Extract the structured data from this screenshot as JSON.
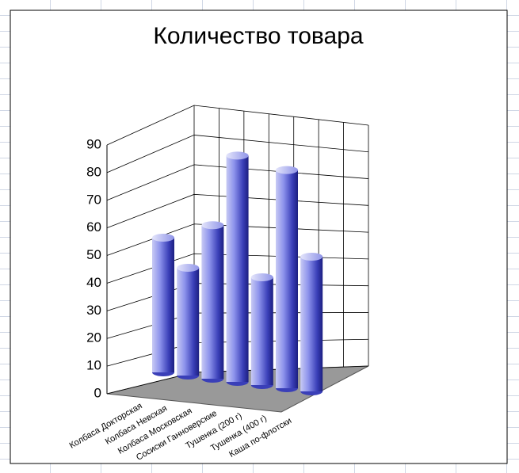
{
  "chart_data": {
    "type": "bar3d-cylinder",
    "title": "Количество товара",
    "categories": [
      "Колбаса Докторская",
      "Колбаса Невская",
      "Колбаса Московская",
      "Сосиски Ганноверские",
      "Тушенка (200 г)",
      "Тушенка (400 г)",
      "Каша по-флотски"
    ],
    "values": [
      50,
      40,
      57,
      84,
      40,
      81,
      50
    ],
    "color": "#5a63d8",
    "ylim": [
      0,
      90
    ],
    "yticks": [
      0,
      10,
      20,
      30,
      40,
      50,
      60,
      70,
      80,
      90
    ],
    "grid": true
  }
}
